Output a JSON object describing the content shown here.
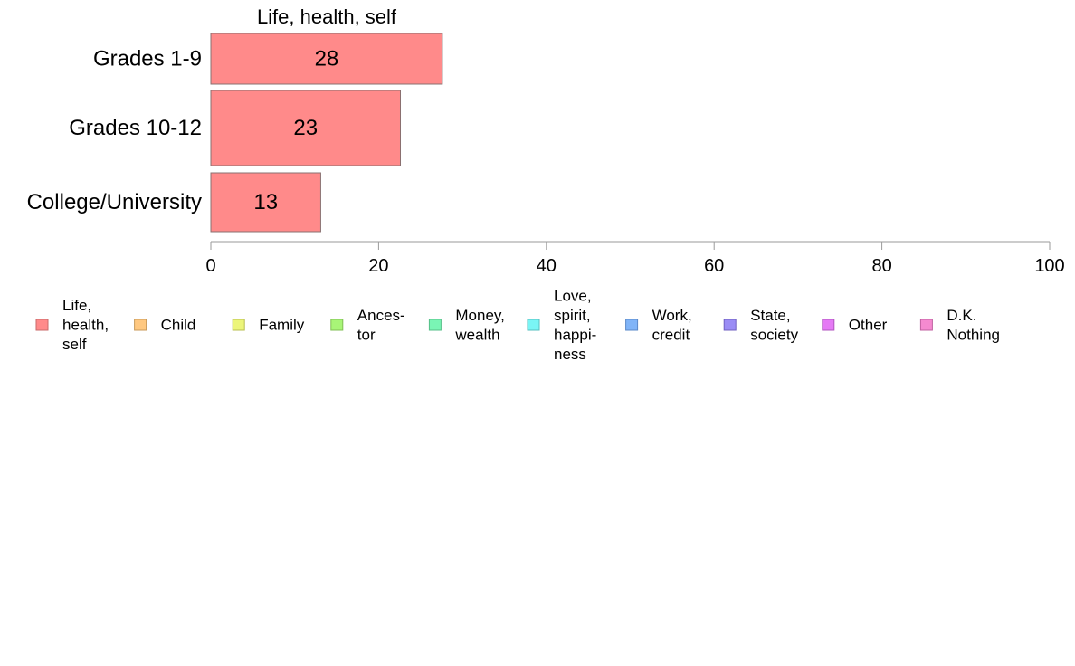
{
  "chart_data": {
    "type": "bar",
    "orientation": "horizontal",
    "categories": [
      "Grades 1-9",
      "Grades 10-12",
      "College/University"
    ],
    "series": [
      {
        "name": "Life, health, self",
        "color": "#ff8a8a",
        "values": [
          27.6,
          22.6,
          13.1
        ],
        "labels": [
          "28",
          "23",
          "13"
        ]
      }
    ],
    "xlim": [
      0,
      100
    ],
    "xticks": [
      0,
      20,
      40,
      60,
      80,
      100
    ],
    "xtick_labels": [
      "0",
      "20",
      "40",
      "60",
      "80",
      "100"
    ],
    "grid": false,
    "legend_position": "bottom",
    "legend": [
      {
        "lines": [
          "Life,",
          "health,",
          "self"
        ],
        "color": "#ff8a8a",
        "stroke": "#c86a6a"
      },
      {
        "lines": [
          "Child"
        ],
        "color": "#ffc880",
        "stroke": "#c89a5a"
      },
      {
        "lines": [
          "Family"
        ],
        "color": "#ecf57a",
        "stroke": "#b8bf50"
      },
      {
        "lines": [
          "Ances-",
          "tor"
        ],
        "color": "#a8f577",
        "stroke": "#80bf55"
      },
      {
        "lines": [
          "Money,",
          "wealth"
        ],
        "color": "#7af5b5",
        "stroke": "#55bf88"
      },
      {
        "lines": [
          "Love,",
          "spirit,",
          "happi-",
          "ness"
        ],
        "color": "#7af5f5",
        "stroke": "#55bfbf"
      },
      {
        "lines": [
          "Work,",
          "credit"
        ],
        "color": "#80b4f8",
        "stroke": "#5a88c8"
      },
      {
        "lines": [
          "State,",
          "society"
        ],
        "color": "#9a8cf5",
        "stroke": "#7060c0"
      },
      {
        "lines": [
          "Other"
        ],
        "color": "#e57af5",
        "stroke": "#b055bf"
      },
      {
        "lines": [
          "D.K.",
          "Nothing"
        ],
        "color": "#f58ad0",
        "stroke": "#c060a0"
      }
    ]
  }
}
